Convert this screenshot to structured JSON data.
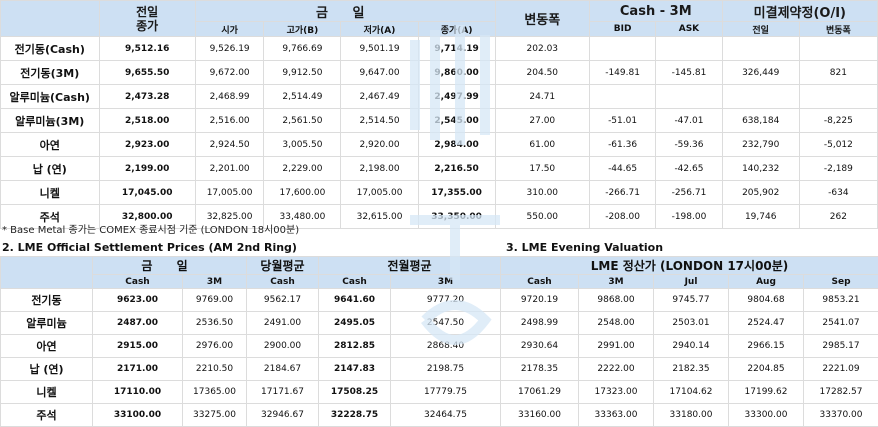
{
  "table1": {
    "headers": {
      "prev_top": "전일",
      "prev_bottom": "종가",
      "today": "금 일",
      "change": "변동폭",
      "cash3m": "Cash - 3M",
      "oi": "미결제약정(O/I)",
      "open": "시가",
      "high": "고가(B)",
      "low": "저가(A)",
      "close": "종가(A)",
      "bid": "BID",
      "ask": "ASK",
      "oi_prev": "전일",
      "oi_change": "변동폭"
    },
    "rows": [
      {
        "name": "전기동(Cash)",
        "prev": "9,512.16",
        "open": "9,526.19",
        "high": "9,766.69",
        "low": "9,501.19",
        "close": "9,714.19",
        "change": "202.03",
        "bid": "",
        "ask": "",
        "oi_prev": "",
        "oi_chg": ""
      },
      {
        "name": "전기동(3M)",
        "prev": "9,655.50",
        "open": "9,672.00",
        "high": "9,912.50",
        "low": "9,647.00",
        "close": "9,860.00",
        "change": "204.50",
        "bid": "-149.81",
        "ask": "-145.81",
        "oi_prev": "326,449",
        "oi_chg": "821"
      },
      {
        "name": "알루미늄(Cash)",
        "prev": "2,473.28",
        "open": "2,468.99",
        "high": "2,514.49",
        "low": "2,467.49",
        "close": "2,497.99",
        "change": "24.71",
        "bid": "",
        "ask": "",
        "oi_prev": "",
        "oi_chg": ""
      },
      {
        "name": "알루미늄(3M)",
        "prev": "2,518.00",
        "open": "2,516.00",
        "high": "2,561.50",
        "low": "2,514.50",
        "close": "2,545.00",
        "change": "27.00",
        "bid": "-51.01",
        "ask": "-47.01",
        "oi_prev": "638,184",
        "oi_chg": "-8,225"
      },
      {
        "name": "아연",
        "prev": "2,923.00",
        "open": "2,924.50",
        "high": "3,005.50",
        "low": "2,920.00",
        "close": "2,984.00",
        "change": "61.00",
        "bid": "-61.36",
        "ask": "-59.36",
        "oi_prev": "232,790",
        "oi_chg": "-5,012"
      },
      {
        "name": "납 (연)",
        "prev": "2,199.00",
        "open": "2,201.00",
        "high": "2,229.00",
        "low": "2,198.00",
        "close": "2,216.50",
        "change": "17.50",
        "bid": "-44.65",
        "ask": "-42.65",
        "oi_prev": "140,232",
        "oi_chg": "-2,189"
      },
      {
        "name": "니켈",
        "prev": "17,045.00",
        "open": "17,005.00",
        "high": "17,600.00",
        "low": "17,005.00",
        "close": "17,355.00",
        "change": "310.00",
        "bid": "-266.71",
        "ask": "-256.71",
        "oi_prev": "205,902",
        "oi_chg": "-634"
      },
      {
        "name": "주석",
        "prev": "32,800.00",
        "open": "32,825.00",
        "high": "33,480.00",
        "low": "32,615.00",
        "close": "33,350.00",
        "change": "550.00",
        "bid": "-208.00",
        "ask": "-198.00",
        "oi_prev": "19,746",
        "oi_chg": "262"
      }
    ]
  },
  "note": "* Base Metal 종가는 COMEX 종료시점 기준 (LONDON 18시00분)",
  "section2": {
    "title": "2. LME Official Settlement Prices (AM 2nd Ring)",
    "h_today": "금 일",
    "h_cur_avg": "당월평균",
    "h_prev_avg": "전월평균",
    "cash": "Cash",
    "m3": "3M",
    "rows": [
      {
        "name": "전기동",
        "cash": "9623.00",
        "m3": "9769.00",
        "cur": "9562.17",
        "pcash": "9641.60",
        "p3m": "9777.20"
      },
      {
        "name": "알루미늄",
        "cash": "2487.00",
        "m3": "2536.50",
        "cur": "2491.00",
        "pcash": "2495.05",
        "p3m": "2547.50"
      },
      {
        "name": "아연",
        "cash": "2915.00",
        "m3": "2976.00",
        "cur": "2900.00",
        "pcash": "2812.85",
        "p3m": "2868.40"
      },
      {
        "name": "납 (연)",
        "cash": "2171.00",
        "m3": "2210.50",
        "cur": "2184.67",
        "pcash": "2147.83",
        "p3m": "2198.75"
      },
      {
        "name": "니켈",
        "cash": "17110.00",
        "m3": "17365.00",
        "cur": "17171.67",
        "pcash": "17508.25",
        "p3m": "17779.75"
      },
      {
        "name": "주석",
        "cash": "33100.00",
        "m3": "33275.00",
        "cur": "32946.67",
        "pcash": "32228.75",
        "p3m": "32464.75"
      }
    ]
  },
  "section3": {
    "title": "3. LME Evening Valuation",
    "header": "LME 정산가 (LONDON 17시00분)",
    "cols": [
      "Cash",
      "3M",
      "Jul",
      "Aug",
      "Sep"
    ],
    "rows": [
      [
        "9720.19",
        "9868.00",
        "9745.77",
        "9804.68",
        "9853.21"
      ],
      [
        "2498.99",
        "2548.00",
        "2503.01",
        "2524.47",
        "2541.07"
      ],
      [
        "2930.64",
        "2991.00",
        "2940.14",
        "2966.15",
        "2985.17"
      ],
      [
        "2178.35",
        "2222.00",
        "2182.35",
        "2204.85",
        "2221.09"
      ],
      [
        "17061.29",
        "17323.00",
        "17104.62",
        "17199.62",
        "17282.57"
      ],
      [
        "33160.00",
        "33363.00",
        "33180.00",
        "33300.00",
        "33370.00"
      ]
    ]
  },
  "colors": {
    "header_bg": "#cde0f3",
    "border": "#dcdcdc"
  }
}
